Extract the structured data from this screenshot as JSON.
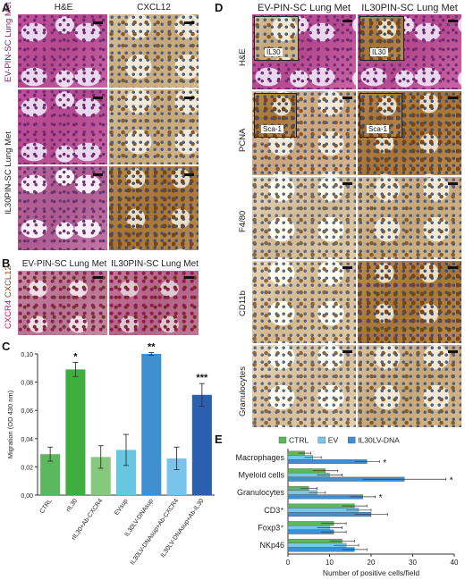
{
  "panels": {
    "A": {
      "letter": "A",
      "col_headers": [
        "H&E",
        "CXCL12"
      ],
      "row_labels": [
        "EV-PIN-SC Lung Met",
        "IL30PIN-SC Lung Met"
      ]
    },
    "B": {
      "letter": "B",
      "col_headers": [
        "EV-PIN-SC Lung Met",
        "IL30PIN-SC Lung Met"
      ],
      "stain_label_a": "CXCR4",
      "stain_label_b": "CXCL12"
    },
    "C": {
      "letter": "C"
    },
    "D": {
      "letter": "D",
      "col_headers": [
        "EV-PIN-SC Lung Met",
        "IL30PIN-SC Lung Met"
      ],
      "row_labels": [
        "H&E",
        "PCNA",
        "F4/80",
        "CD11b",
        "Granulocytes"
      ],
      "inset_labels": {
        "he": "IL30",
        "pcna": "Sca-1"
      }
    },
    "E": {
      "letter": "E"
    }
  },
  "colors": {
    "ctrl": "#5cb85c",
    "rIL30": "#3fae3f",
    "rIL30_ab": "#86c97d",
    "evsup": "#67c7e0",
    "il30lv": "#3e8fd0",
    "il30lv_ab_cxcr4": "#79c3ec",
    "il30lv_ab_il30": "#2b5fb0",
    "e_ctrl": "#5cb85c",
    "e_ev": "#78c7ea",
    "e_il30": "#3f8fd4"
  },
  "chart_data": [
    {
      "type": "bar",
      "panel": "C",
      "ylabel": "Migration (OD 430 nm)",
      "ylim": [
        0,
        0.1
      ],
      "yticks": [
        "0,00",
        "0,02",
        "0,04",
        "0,06",
        "0,08",
        "0,10"
      ],
      "categories": [
        "CTRL",
        "rIL30",
        "rIL30+Ab-CXCR4",
        "EVsup",
        "IL30LV-DNAsup",
        "IL30LV-DNAsup+Ab-CXCR4",
        "IL30LV-DNAsup+Ab-IL30"
      ],
      "values": [
        0.029,
        0.089,
        0.027,
        0.032,
        0.1,
        0.026,
        0.071
      ],
      "errors": [
        0.005,
        0.005,
        0.008,
        0.011,
        0.001,
        0.008,
        0.008
      ],
      "annotations": [
        "",
        "*",
        "",
        "",
        "**",
        "",
        "***"
      ],
      "grid": false
    },
    {
      "type": "bar",
      "panel": "E",
      "orientation": "horizontal",
      "xlabel": "Number of positive cells/field",
      "xlim": [
        0,
        40
      ],
      "xticks": [
        "0",
        "10",
        "20",
        "30",
        "40"
      ],
      "categories": [
        "Macrophages",
        "Myeloid cells",
        "Granulocytes",
        "CD3⁺",
        "Foxp3⁺",
        "NKp46"
      ],
      "series": [
        {
          "name": "CTRL",
          "values": [
            4,
            9,
            5,
            16,
            11,
            13
          ],
          "errors": [
            1.5,
            3,
            2,
            3,
            3,
            3
          ]
        },
        {
          "name": "EV",
          "values": [
            6,
            10,
            7,
            17,
            10,
            14
          ],
          "errors": [
            2,
            3,
            2,
            3,
            3,
            3
          ]
        },
        {
          "name": "IL30LV-DNA",
          "values": [
            19,
            28,
            18,
            20,
            11,
            16
          ],
          "errors": [
            3,
            10,
            3,
            4,
            3,
            3
          ]
        }
      ],
      "annotations": [
        "*",
        "*",
        "*",
        "",
        "",
        ""
      ],
      "legend": "top",
      "grid": false
    }
  ]
}
